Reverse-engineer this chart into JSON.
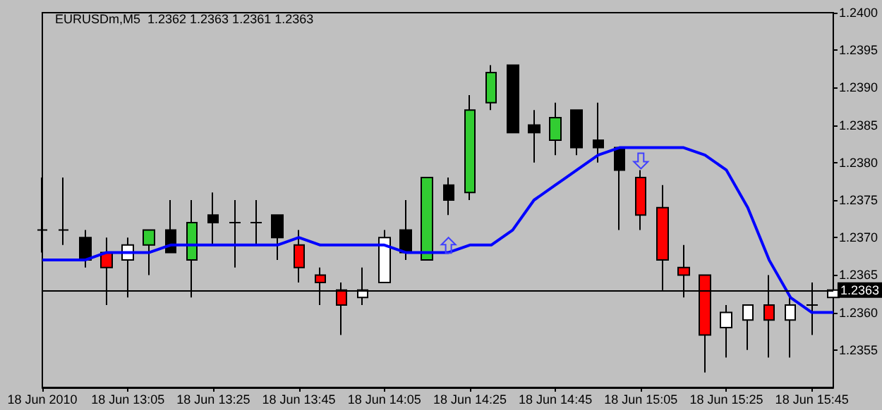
{
  "chart_data": {
    "type": "candlestick",
    "title": "EURUSDm,M5  1.2362 1.2363 1.2361 1.2363",
    "categories": [
      "18 Jun 2010",
      null,
      null,
      null,
      "18 Jun 13:05",
      null,
      null,
      null,
      "18 Jun 13:25",
      null,
      null,
      null,
      "18 Jun 13:45",
      null,
      null,
      null,
      "18 Jun 14:05",
      null,
      null,
      null,
      "18 Jun 14:25",
      null,
      null,
      null,
      "18 Jun 14:45",
      null,
      null,
      null,
      "18 Jun 15:05",
      null,
      null,
      null,
      "18 Jun 15:25",
      null,
      null,
      null,
      "18 Jun 15:45",
      null
    ],
    "ohlc": [
      [
        1.2371,
        1.2378,
        1.2368,
        1.2371
      ],
      [
        1.2371,
        1.2378,
        1.2369,
        1.2371
      ],
      [
        1.237,
        1.2371,
        1.2366,
        1.2367
      ],
      [
        1.2368,
        1.237,
        1.2361,
        1.2366
      ],
      [
        1.2367,
        1.237,
        1.2362,
        1.2369
      ],
      [
        1.2369,
        1.2371,
        1.2365,
        1.2371
      ],
      [
        1.2371,
        1.2375,
        1.2368,
        1.2368
      ],
      [
        1.2367,
        1.2375,
        1.2362,
        1.2372
      ],
      [
        1.2373,
        1.2376,
        1.2369,
        1.2372
      ],
      [
        1.2372,
        1.2375,
        1.2366,
        1.2372
      ],
      [
        1.2372,
        1.2375,
        1.2369,
        1.2372
      ],
      [
        1.2373,
        1.2373,
        1.2367,
        1.237
      ],
      [
        1.2369,
        1.2371,
        1.2364,
        1.2366
      ],
      [
        1.2365,
        1.2366,
        1.2361,
        1.2364
      ],
      [
        1.2363,
        1.2364,
        1.2357,
        1.2361
      ],
      [
        1.2362,
        1.2366,
        1.2361,
        1.2363
      ],
      [
        1.2364,
        1.2371,
        1.2364,
        1.237
      ],
      [
        1.2371,
        1.2375,
        1.2367,
        1.2368
      ],
      [
        1.2367,
        1.2378,
        1.2367,
        1.2378
      ],
      [
        1.2377,
        1.2378,
        1.2373,
        1.2375
      ],
      [
        1.2376,
        1.2389,
        1.2375,
        1.2387
      ],
      [
        1.2388,
        1.2393,
        1.2387,
        1.2392
      ],
      [
        1.2393,
        1.2393,
        1.2384,
        1.2384
      ],
      [
        1.2385,
        1.2387,
        1.238,
        1.2384
      ],
      [
        1.2383,
        1.2388,
        1.2381,
        1.2386
      ],
      [
        1.2387,
        1.2387,
        1.2381,
        1.2382
      ],
      [
        1.2383,
        1.2388,
        1.238,
        1.2382
      ],
      [
        1.2382,
        1.2382,
        1.2371,
        1.2379
      ],
      [
        1.2378,
        1.2379,
        1.2371,
        1.2373
      ],
      [
        1.2374,
        1.2377,
        1.2363,
        1.2367
      ],
      [
        1.2366,
        1.2369,
        1.2362,
        1.2365
      ],
      [
        1.2365,
        1.2365,
        1.2352,
        1.2357
      ],
      [
        1.2358,
        1.2361,
        1.2354,
        1.236
      ],
      [
        1.2359,
        1.2361,
        1.2355,
        1.2361
      ],
      [
        1.2361,
        1.2365,
        1.2354,
        1.2359
      ],
      [
        1.2359,
        1.2362,
        1.2354,
        1.2361
      ],
      [
        1.2361,
        1.2364,
        1.2357,
        1.2361
      ],
      [
        1.2362,
        1.2363,
        1.2361,
        1.2363
      ]
    ],
    "colors": [
      "#000000",
      "#000000",
      "#000000",
      "#ff0000",
      "#ffffff",
      "#32cd32",
      "#000000",
      "#32cd32",
      "#000000",
      "#000000",
      "#000000",
      "#000000",
      "#ff0000",
      "#ff0000",
      "#ff0000",
      "#ffffff",
      "#ffffff",
      "#000000",
      "#32cd32",
      "#000000",
      "#32cd32",
      "#32cd32",
      "#000000",
      "#000000",
      "#32cd32",
      "#000000",
      "#000000",
      "#000000",
      "#ff0000",
      "#ff0000",
      "#ff0000",
      "#ff0000",
      "#ffffff",
      "#ffffff",
      "#ff0000",
      "#ffffff",
      "#000000",
      "#ffffff"
    ],
    "series": [
      {
        "type": "line",
        "color": "#0000ff",
        "values": [
          1.2367,
          1.2367,
          1.2367,
          1.2368,
          1.2368,
          1.2368,
          1.2369,
          1.2369,
          1.2369,
          1.2369,
          1.2369,
          1.2369,
          1.237,
          1.2369,
          1.2369,
          1.2369,
          1.2369,
          1.2368,
          1.2368,
          1.2368,
          1.2369,
          1.2369,
          1.2371,
          1.2375,
          1.2377,
          1.2379,
          1.2381,
          1.2382,
          1.2382,
          1.2382,
          1.2382,
          1.2381,
          1.2379,
          1.2374,
          1.2367,
          1.2362,
          1.236,
          1.236
        ]
      }
    ],
    "ylim": [
      1.235,
      1.24
    ],
    "yticks": [
      {
        "value": 1.2355,
        "label": "1.2355"
      },
      {
        "value": 1.236,
        "label": "1.2360"
      },
      {
        "value": 1.2365,
        "label": "1.2365"
      },
      {
        "value": 1.237,
        "label": "1.2370"
      },
      {
        "value": 1.2375,
        "label": "1.2375"
      },
      {
        "value": 1.238,
        "label": "1.2380"
      },
      {
        "value": 1.2385,
        "label": "1.2385"
      },
      {
        "value": 1.239,
        "label": "1.2390"
      },
      {
        "value": 1.2395,
        "label": "1.2395"
      },
      {
        "value": 1.24,
        "label": "1.2400"
      }
    ],
    "ref_lines": [
      {
        "axis": "y",
        "value": 1.2363,
        "label": "1.2363",
        "color": "#000000"
      }
    ],
    "marker": "none"
  }
}
